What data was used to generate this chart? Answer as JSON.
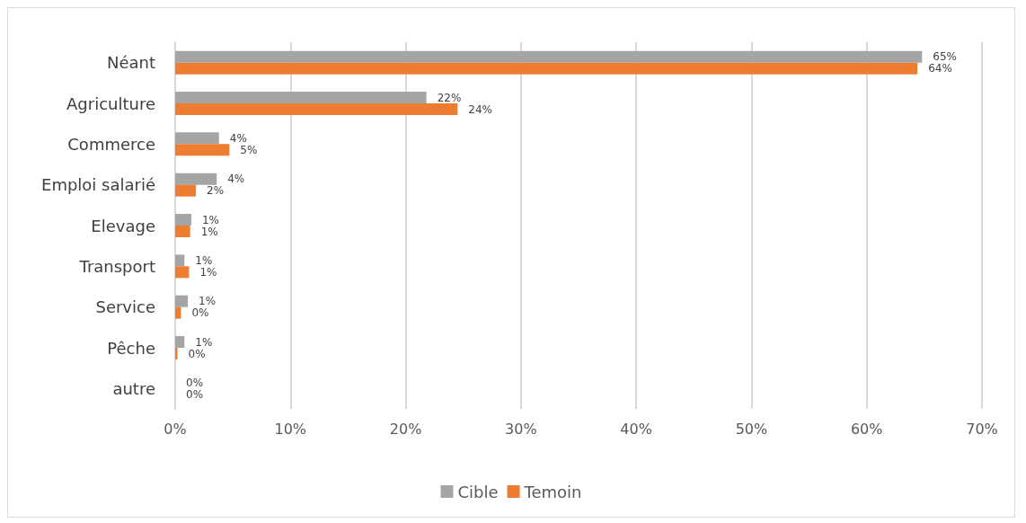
{
  "chart_data": {
    "type": "bar",
    "orientation": "horizontal",
    "categories": [
      "Néant",
      "Agriculture",
      "Commerce",
      "Emploi salarié",
      "Elevage",
      "Transport",
      "Service",
      "Pêche",
      "autre"
    ],
    "series": [
      {
        "name": "Cible",
        "color": "#a5a5a5",
        "values": [
          64.8,
          21.8,
          3.8,
          3.6,
          1.4,
          0.8,
          1.1,
          0.8,
          0
        ],
        "value_labels": [
          "65%",
          "22%",
          "4%",
          "4%",
          "1%",
          "1%",
          "1%",
          "1%",
          "0%"
        ]
      },
      {
        "name": "Temoin",
        "color": "#ed7d31",
        "values": [
          64.4,
          24.5,
          4.7,
          1.8,
          1.3,
          1.2,
          0.5,
          0.2,
          0
        ],
        "value_labels": [
          "64%",
          "24%",
          "5%",
          "2%",
          "1%",
          "1%",
          "0%",
          "0%",
          "0%"
        ]
      }
    ],
    "xlim": [
      0,
      70
    ],
    "xticks": [
      {
        "value": 0,
        "label": "0%"
      },
      {
        "value": 10,
        "label": "10%"
      },
      {
        "value": 20,
        "label": "20%"
      },
      {
        "value": 30,
        "label": "30%"
      },
      {
        "value": 40,
        "label": "40%"
      },
      {
        "value": 50,
        "label": "50%"
      },
      {
        "value": 60,
        "label": "60%"
      },
      {
        "value": 70,
        "label": "70%"
      }
    ],
    "grid": "x",
    "legend": "bottom"
  }
}
